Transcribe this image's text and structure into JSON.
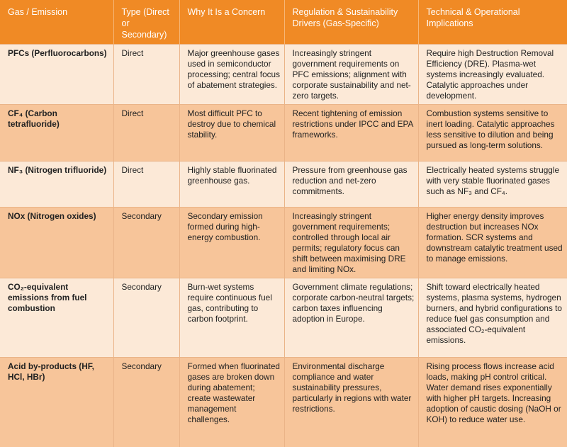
{
  "headers": [
    "Gas / Emission",
    "Type (Direct or Secondary)",
    "Why It Is a Concern",
    "Regulation & Sustainability Drivers (Gas-Specific)",
    "Technical & Operational Implications"
  ],
  "rows": [
    {
      "gas": "PFCs (Perfluorocarbons)",
      "type": "Direct",
      "concern": "Major greenhouse gases used in semiconductor processing; central focus of abatement strategies.",
      "drivers": "Increasingly stringent government requirements on PFC emissions; alignment with corporate sustainability and net-zero targets.",
      "implications": "Require high Destruction Removal Efficiency (DRE). Plasma-wet systems increasingly evaluated. Catalytic approaches under development."
    },
    {
      "gas": "CF₄ (Carbon tetrafluoride)",
      "type": "Direct",
      "concern": "Most difficult PFC to destroy due to chemical stability.",
      "drivers": "Recent tightening of emission restrictions under IPCC and EPA frameworks.",
      "implications": "Combustion systems sensitive to inert loading. Catalytic approaches less sensitive to dilution and being pursued as long-term solutions."
    },
    {
      "gas": "NF₃ (Nitrogen trifluoride)",
      "type": "Direct",
      "concern": "Highly stable fluorinated greenhouse gas.",
      "drivers": "Pressure from greenhouse gas reduction and net-zero commitments.",
      "implications": "Electrically heated systems struggle with very stable fluorinated gases such as NF₃ and CF₄."
    },
    {
      "gas": "NOx (Nitrogen oxides)",
      "type": "Secondary",
      "concern": "Secondary emission formed during high-energy combustion.",
      "drivers": "Increasingly stringent government requirements; controlled through local air permits; regulatory focus can shift between maximising DRE and limiting NOx.",
      "implications": "Higher energy density improves destruction but increases NOx formation. SCR systems and downstream catalytic treatment used to manage emissions."
    },
    {
      "gas": "CO₂-equivalent emissions from fuel combustion",
      "type": "Secondary",
      "concern": "Burn-wet systems require continuous fuel gas, contributing to carbon footprint.",
      "drivers": "Government climate regulations; corporate carbon-neutral targets; carbon taxes influencing adoption in Europe.",
      "implications": "Shift toward electrically heated systems, plasma systems, hydrogen burners, and hybrid configurations to reduce fuel gas consumption and associated CO₂-equivalent emissions."
    },
    {
      "gas": "Acid by-products (HF, HCl, HBr)",
      "type": "Secondary",
      "concern": "Formed when fluorinated gases are broken down during abatement; create wastewater management challenges.",
      "drivers": "Environmental discharge compliance and water sustainability pressures, particularly in regions with water restrictions.",
      "implications": "Rising process flows increase acid loads, making pH control critical. Water demand rises exponentially with higher pH targets. Increasing adoption of caustic dosing (NaOH or KOH) to reduce water use."
    }
  ]
}
